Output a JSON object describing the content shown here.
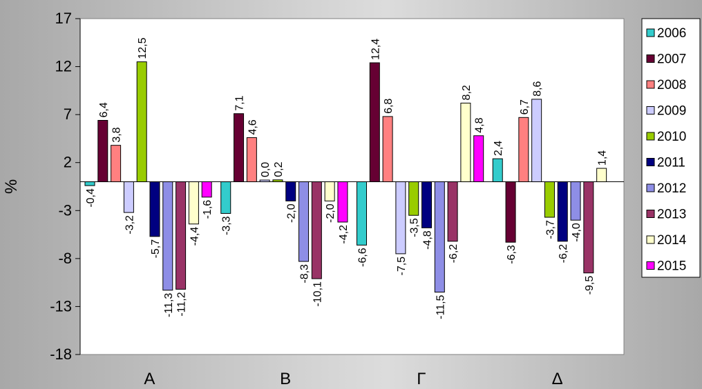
{
  "chart_data": {
    "type": "bar",
    "ylabel": "%",
    "xlabel": "",
    "ylim": [
      -18,
      17
    ],
    "yticks": [
      "17",
      "12",
      "7",
      "2",
      "-3",
      "-8",
      "-13",
      "-18"
    ],
    "ytick_values": [
      17,
      12,
      7,
      2,
      -3,
      -8,
      -13,
      -18
    ],
    "categories": [
      "Α",
      "Β",
      "Γ",
      "Δ"
    ],
    "legend_position": "right",
    "series": [
      {
        "name": "2006",
        "color": "#33cccc",
        "values": [
          -0.4,
          -3.3,
          -6.6,
          2.4
        ],
        "labels": [
          "-0,4",
          "-3,3",
          "-6,6",
          "2,4"
        ]
      },
      {
        "name": "2007",
        "color": "#660033",
        "values": [
          6.4,
          7.1,
          12.4,
          -6.3
        ],
        "labels": [
          "6,4",
          "7,1",
          "12,4",
          "-6,3"
        ]
      },
      {
        "name": "2008",
        "color": "#ff8080",
        "values": [
          3.8,
          4.6,
          6.8,
          6.7
        ],
        "labels": [
          "3,8",
          "4,6",
          "6,8",
          "6,7"
        ]
      },
      {
        "name": "2009",
        "color": "#ccccff",
        "values": [
          -3.2,
          0.0,
          -7.5,
          8.6
        ],
        "labels": [
          "-3,2",
          "0,0",
          "-7,5",
          "8,6"
        ]
      },
      {
        "name": "2010",
        "color": "#99cc00",
        "values": [
          12.5,
          0.2,
          -3.5,
          -3.7
        ],
        "labels": [
          "12,5",
          "0,2",
          "-3,5",
          "-3,7"
        ]
      },
      {
        "name": "2011",
        "color": "#000080",
        "values": [
          -5.7,
          -2.0,
          -4.8,
          -6.2
        ],
        "labels": [
          "-5,7",
          "-2,0",
          "-4,8",
          "-6,2"
        ]
      },
      {
        "name": "2012",
        "color": "#8e8ee6",
        "values": [
          -11.3,
          -8.3,
          -11.5,
          -4.0
        ],
        "labels": [
          "-11,3",
          "-8,3",
          "-11,5",
          "-4,0"
        ]
      },
      {
        "name": "2013",
        "color": "#993366",
        "values": [
          -11.2,
          -10.1,
          -6.2,
          -9.5
        ],
        "labels": [
          "-11,2",
          "-10,1",
          "-6,2",
          "-9,5"
        ]
      },
      {
        "name": "2014",
        "color": "#ffffcc",
        "values": [
          -4.4,
          -2.0,
          8.2,
          1.4
        ],
        "labels": [
          "-4,4",
          "-2,0",
          "8,2",
          "1,4"
        ]
      },
      {
        "name": "2015",
        "color": "#ff00ff",
        "values": [
          -1.6,
          -4.2,
          4.8,
          null
        ],
        "labels": [
          "-1,6",
          "-4,2",
          "4,8",
          ""
        ]
      }
    ]
  }
}
